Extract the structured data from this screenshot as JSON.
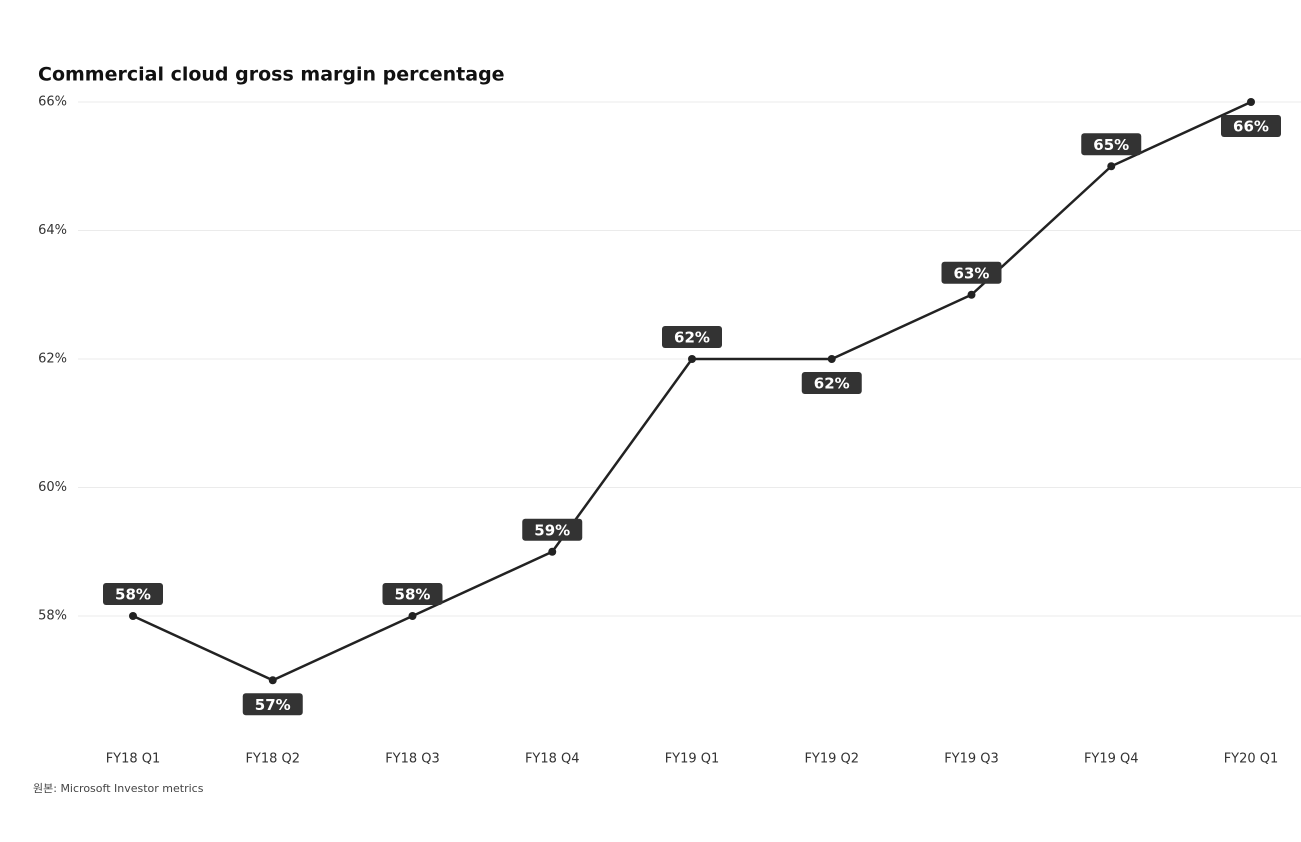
{
  "chart_data": {
    "type": "line",
    "title": "Commercial cloud gross margin percentage",
    "source": "원본: Microsoft Investor metrics",
    "categories": [
      "FY18 Q1",
      "FY18 Q2",
      "FY18 Q3",
      "FY18 Q4",
      "FY19 Q1",
      "FY19 Q2",
      "FY19 Q3",
      "FY19 Q4",
      "FY20 Q1"
    ],
    "values": [
      58,
      57,
      58,
      59,
      62,
      62,
      63,
      65,
      66
    ],
    "value_labels": [
      "58%",
      "57%",
      "58%",
      "59%",
      "62%",
      "62%",
      "63%",
      "65%",
      "66%"
    ],
    "color": "#222222",
    "ylim": [
      56,
      66
    ],
    "yticks": [
      {
        "value": 58,
        "label": "58%"
      },
      {
        "value": 60,
        "label": "60%"
      },
      {
        "value": 62,
        "label": "62%"
      },
      {
        "value": 64,
        "label": "64%"
      },
      {
        "value": 66,
        "label": "66%"
      }
    ],
    "grid": true
  }
}
